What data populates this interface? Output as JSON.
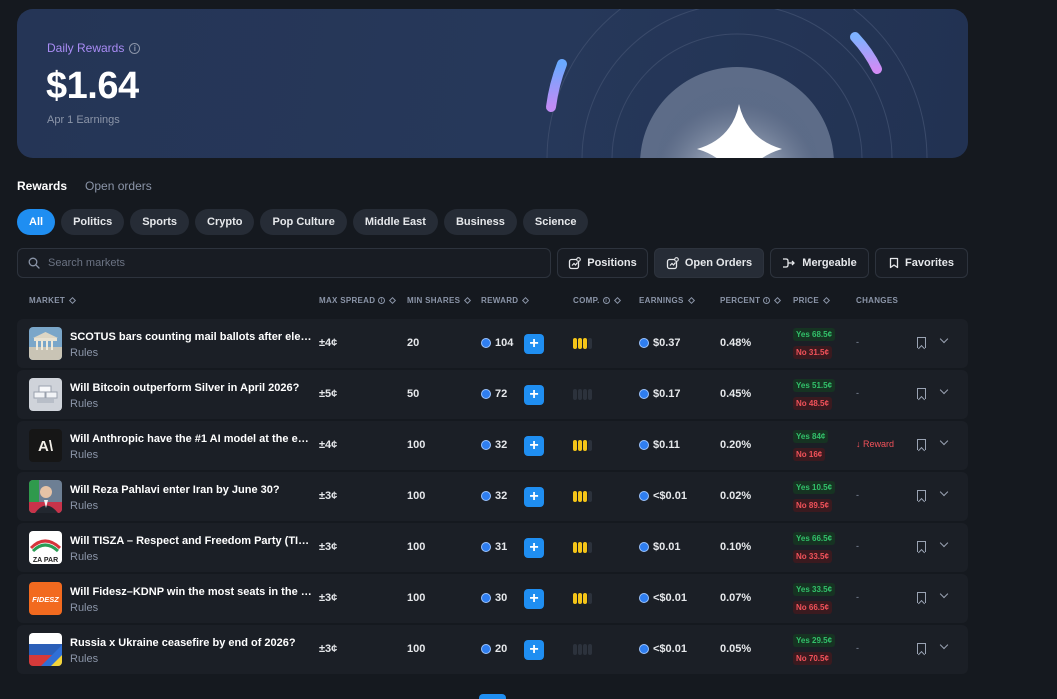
{
  "hero": {
    "label": "Daily Rewards",
    "value": "$1.64",
    "subtitle": "Apr 1 Earnings"
  },
  "tabs": [
    {
      "label": "Rewards",
      "active": true
    },
    {
      "label": "Open orders",
      "active": false
    }
  ],
  "categories": [
    "All",
    "Politics",
    "Sports",
    "Crypto",
    "Pop Culture",
    "Middle East",
    "Business",
    "Science"
  ],
  "active_category": "All",
  "search": {
    "placeholder": "Search markets",
    "value": ""
  },
  "filters": {
    "positions": "Positions",
    "open_orders": "Open Orders",
    "mergeable": "Mergeable",
    "favorites": "Favorites"
  },
  "columns": {
    "market": "MARKET",
    "max_spread": "MAX SPREAD",
    "min_shares": "MIN SHARES",
    "reward": "REWARD",
    "comp": "COMP.",
    "earnings": "EARNINGS",
    "percent": "PERCENT",
    "price": "PRICE",
    "changes": "CHANGES"
  },
  "rows": [
    {
      "title": "SCOTUS bars counting mail ballots after election ...",
      "rules": "Rules",
      "max_spread": "±4¢",
      "min_shares": "20",
      "reward": "104",
      "comp_level": 3,
      "earnings": "$0.37",
      "percent": "0.48%",
      "yes": "Yes 68.5¢",
      "no": "No 31.5¢",
      "changes": "-",
      "thumb": "scotus"
    },
    {
      "title": "Will Bitcoin outperform Silver in April 2026?",
      "rules": "Rules",
      "max_spread": "±5¢",
      "min_shares": "50",
      "reward": "72",
      "comp_level": 0,
      "earnings": "$0.17",
      "percent": "0.45%",
      "yes": "Yes 51.5¢",
      "no": "No 48.5¢",
      "changes": "-",
      "thumb": "silver"
    },
    {
      "title": "Will Anthropic have the #1 AI model at the end of ...",
      "rules": "Rules",
      "max_spread": "±4¢",
      "min_shares": "100",
      "reward": "32",
      "comp_level": 3,
      "earnings": "$0.11",
      "percent": "0.20%",
      "yes": "Yes 84¢",
      "no": "No 16¢",
      "changes": "↓ Reward",
      "thumb": "anthropic"
    },
    {
      "title": "Will Reza Pahlavi enter Iran by June 30?",
      "rules": "Rules",
      "max_spread": "±3¢",
      "min_shares": "100",
      "reward": "32",
      "comp_level": 3,
      "earnings": "<$0.01",
      "percent": "0.02%",
      "yes": "Yes 10.5¢",
      "no": "No 89.5¢",
      "changes": "-",
      "thumb": "pahlavi"
    },
    {
      "title": "Will TISZA – Respect and Freedom Party (TISZA) ...",
      "rules": "Rules",
      "max_spread": "±3¢",
      "min_shares": "100",
      "reward": "31",
      "comp_level": 3,
      "earnings": "$0.01",
      "percent": "0.10%",
      "yes": "Yes 66.5¢",
      "no": "No 33.5¢",
      "changes": "-",
      "thumb": "tisza"
    },
    {
      "title": "Will Fidesz–KDNP win the most seats in the next ...",
      "rules": "Rules",
      "max_spread": "±3¢",
      "min_shares": "100",
      "reward": "30",
      "comp_level": 3,
      "earnings": "<$0.01",
      "percent": "0.07%",
      "yes": "Yes 33.5¢",
      "no": "No 66.5¢",
      "changes": "-",
      "thumb": "fidesz"
    },
    {
      "title": "Russia x Ukraine ceasefire by end of 2026?",
      "rules": "Rules",
      "max_spread": "±3¢",
      "min_shares": "100",
      "reward": "20",
      "comp_level": 0,
      "earnings": "<$0.01",
      "percent": "0.05%",
      "yes": "Yes 29.5¢",
      "no": "No 70.5¢",
      "changes": "-",
      "thumb": "flags"
    }
  ],
  "thumb_text": {
    "tisza": "ZA PAR",
    "fidesz": "FIDESZ",
    "anthropic": "A\\"
  },
  "colors": {
    "accent": "#1f8ef1",
    "yes": "#32c16a",
    "no": "#f2525a",
    "comp": "#f5c518",
    "hero_label": "#a98cf5"
  }
}
